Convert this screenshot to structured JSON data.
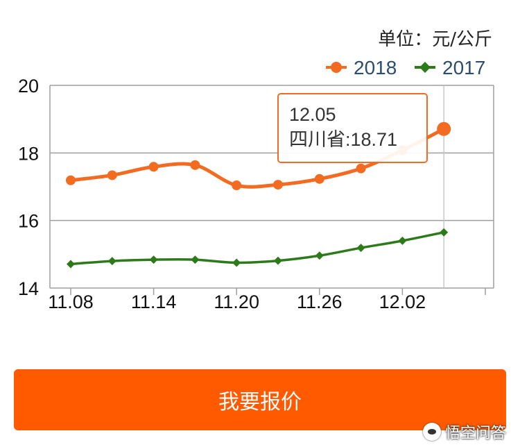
{
  "unit_label": "单位：元/公斤",
  "button_label": "我要报价",
  "watermark": "悟空问答",
  "tooltip": {
    "date": "12.05",
    "text": "四川省:18.71"
  },
  "colors": {
    "s2018": "#f26b21",
    "s2017": "#2d7a1a",
    "button": "#ff5a00",
    "grid": "#9e9e9e"
  },
  "chart_data": {
    "type": "line",
    "title": "",
    "xlabel": "",
    "ylabel": "",
    "ylim": [
      14,
      20
    ],
    "yticks": [
      14,
      16,
      18,
      20
    ],
    "x_labels": [
      "11.08",
      "11.14",
      "11.20",
      "11.26",
      "12.02"
    ],
    "categories": [
      "11.08",
      "11.11",
      "11.14",
      "11.17",
      "11.20",
      "11.23",
      "11.26",
      "11.29",
      "12.02",
      "12.05"
    ],
    "grid": true,
    "legend": "top-right",
    "series": [
      {
        "name": "2018",
        "marker": "circle",
        "values": [
          17.19,
          17.34,
          17.59,
          17.64,
          17.04,
          17.06,
          17.23,
          17.54,
          18.08,
          18.71
        ]
      },
      {
        "name": "2017",
        "marker": "diamond",
        "values": [
          14.71,
          14.8,
          14.84,
          14.84,
          14.75,
          14.81,
          14.96,
          15.19,
          15.4,
          15.65
        ]
      }
    ]
  }
}
